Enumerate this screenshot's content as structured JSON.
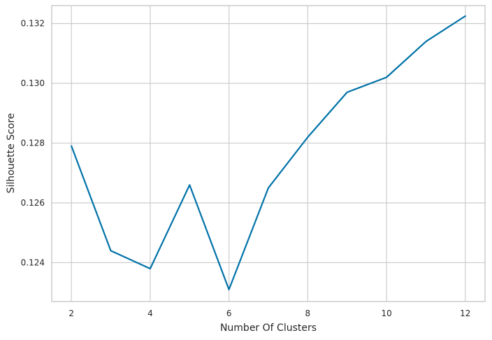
{
  "chart_data": {
    "type": "line",
    "title": "",
    "xlabel": "Number Of Clusters",
    "ylabel": "Silhouette Score",
    "xlim": [
      1.5,
      12.5
    ],
    "ylim": [
      0.1227,
      0.1326
    ],
    "xticks": [
      2,
      4,
      6,
      8,
      10,
      12
    ],
    "xtick_labels": [
      "2",
      "4",
      "6",
      "8",
      "10",
      "12"
    ],
    "yticks": [
      0.124,
      0.126,
      0.128,
      0.13,
      0.132
    ],
    "ytick_labels": [
      "0.124",
      "0.126",
      "0.128",
      "0.130",
      "0.132"
    ],
    "grid": true,
    "series": [
      {
        "color": "#0072a8",
        "x": [
          2,
          3,
          4,
          5,
          6,
          7,
          8,
          9,
          10,
          11,
          12
        ],
        "y": [
          0.1279,
          0.1244,
          0.1238,
          0.1266,
          0.1231,
          0.1265,
          0.1282,
          0.1297,
          0.1302,
          0.1314,
          0.13225
        ]
      }
    ]
  }
}
